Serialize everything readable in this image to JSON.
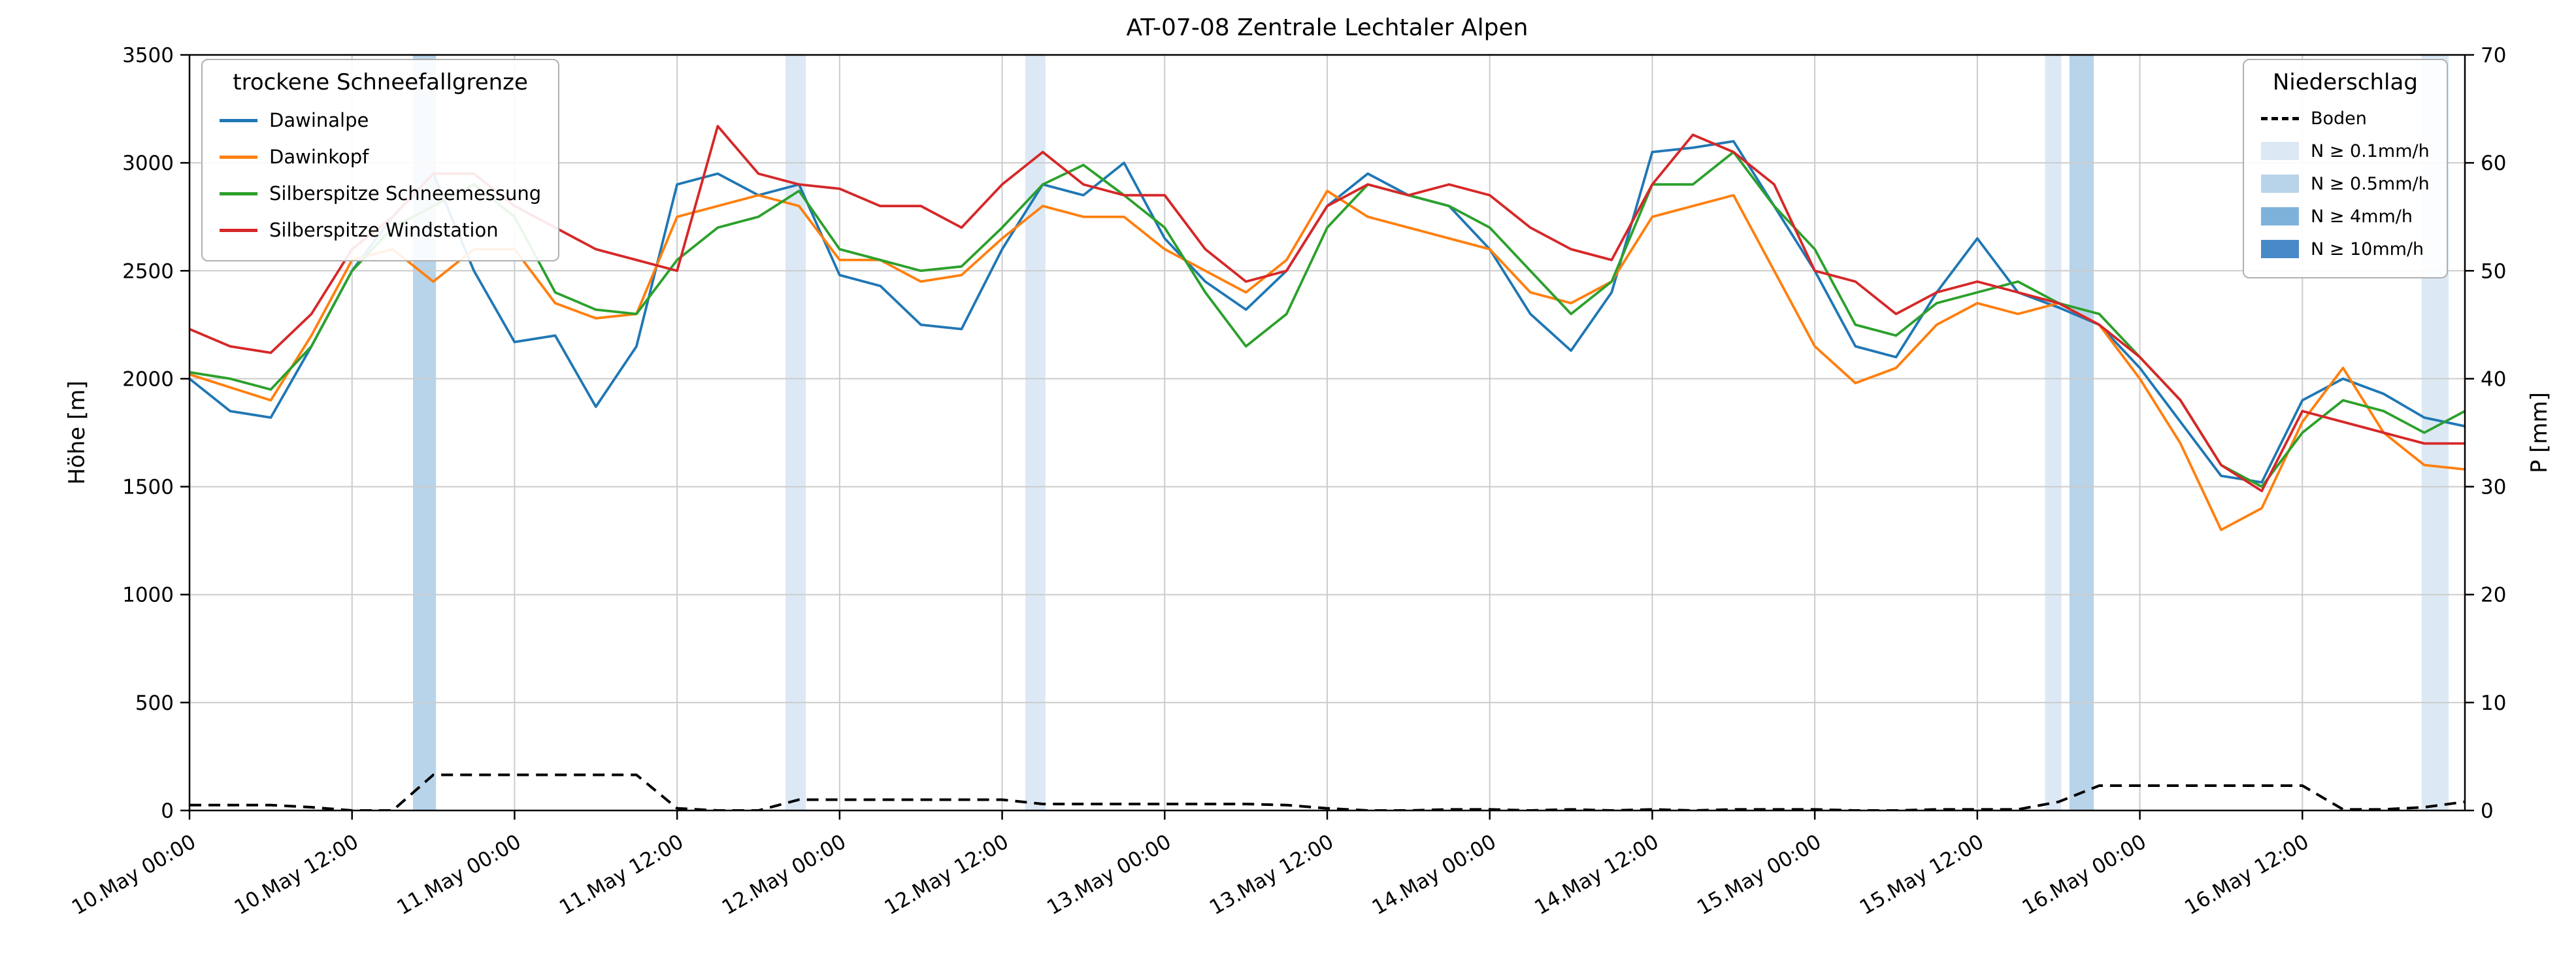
{
  "title": "AT-07-08 Zentrale Lechtaler Alpen",
  "axes": {
    "y_left_label": "Höhe [m]",
    "y_right_label": "P [mm]",
    "y_left_ticks": [
      0,
      500,
      1000,
      1500,
      2000,
      2500,
      3000,
      3500
    ],
    "y_right_ticks": [
      0,
      10,
      20,
      30,
      40,
      50,
      60,
      70
    ],
    "x_ticks": [
      {
        "h": 0,
        "label": "10.May 00:00"
      },
      {
        "h": 12,
        "label": "10.May 12:00"
      },
      {
        "h": 24,
        "label": "11.May 00:00"
      },
      {
        "h": 36,
        "label": "11.May 12:00"
      },
      {
        "h": 48,
        "label": "12.May 00:00"
      },
      {
        "h": 60,
        "label": "12.May 12:00"
      },
      {
        "h": 72,
        "label": "13.May 00:00"
      },
      {
        "h": 84,
        "label": "13.May 12:00"
      },
      {
        "h": 96,
        "label": "14.May 00:00"
      },
      {
        "h": 108,
        "label": "14.May 12:00"
      },
      {
        "h": 120,
        "label": "15.May 00:00"
      },
      {
        "h": 132,
        "label": "15.May 12:00"
      },
      {
        "h": 144,
        "label": "16.May 00:00"
      },
      {
        "h": 156,
        "label": "16.May 12:00"
      }
    ]
  },
  "legend_snowline": {
    "title": "trockene Schneefallgrenze",
    "entries": [
      {
        "label": "Dawinalpe",
        "color": "#1f77b4"
      },
      {
        "label": "Dawinkopf",
        "color": "#ff7f0e"
      },
      {
        "label": "Silberspitze Schneemessung",
        "color": "#2ca02c"
      },
      {
        "label": "Silberspitze Windstation",
        "color": "#d62728"
      }
    ]
  },
  "legend_precip": {
    "title": "Niederschlag",
    "entries": [
      {
        "label": "Boden",
        "color": "#000000",
        "style": "dashed-line"
      },
      {
        "label": "N ≥ 0.1mm/h",
        "color": "#dce9f5",
        "style": "patch"
      },
      {
        "label": "N ≥ 0.5mm/h",
        "color": "#b8d4ea",
        "style": "patch"
      },
      {
        "label": "N ≥ 4mm/h",
        "color": "#7fb2da",
        "style": "patch"
      },
      {
        "label": "N ≥ 10mm/h",
        "color": "#4889c8",
        "style": "patch"
      }
    ]
  },
  "chart_data": {
    "type": "line",
    "title": "AT-07-08 Zentrale Lechtaler Alpen",
    "ylabel": "Höhe [m]",
    "y2label": "P [mm]",
    "xlim_hours": [
      0,
      168
    ],
    "ylim_left": [
      0,
      3500
    ],
    "ylim_right": [
      0,
      70
    ],
    "x_unit": "hours since 10.May 00:00",
    "x_hours": [
      0,
      3,
      6,
      9,
      12,
      15,
      18,
      21,
      24,
      27,
      30,
      33,
      36,
      39,
      42,
      45,
      48,
      51,
      54,
      57,
      60,
      63,
      66,
      69,
      72,
      75,
      78,
      81,
      84,
      87,
      90,
      93,
      96,
      99,
      102,
      105,
      108,
      111,
      114,
      117,
      120,
      123,
      126,
      129,
      132,
      135,
      138,
      141,
      144,
      147,
      150,
      153,
      156,
      159,
      162,
      165,
      168
    ],
    "series": [
      {
        "name": "Dawinalpe",
        "color": "#1f77b4",
        "axis": "left",
        "unit": "m",
        "values": [
          2000,
          1850,
          1820,
          2150,
          2500,
          2750,
          2950,
          2500,
          2170,
          2200,
          1870,
          2150,
          2900,
          2950,
          2850,
          2900,
          2480,
          2430,
          2250,
          2230,
          2600,
          2900,
          2850,
          3000,
          2650,
          2450,
          2320,
          2500,
          2800,
          2950,
          2850,
          2800,
          2600,
          2300,
          2130,
          2400,
          3050,
          3070,
          3100,
          2800,
          2500,
          2150,
          2100,
          2400,
          2650,
          2400,
          2330,
          2250,
          2050,
          1800,
          1550,
          1520,
          1900,
          2000,
          1930,
          1820,
          1780
        ]
      },
      {
        "name": "Dawinkopf",
        "color": "#ff7f0e",
        "axis": "left",
        "unit": "m",
        "values": [
          2020,
          1960,
          1900,
          2200,
          2550,
          2600,
          2450,
          2600,
          2600,
          2350,
          2280,
          2300,
          2750,
          2800,
          2850,
          2800,
          2550,
          2550,
          2450,
          2480,
          2650,
          2800,
          2750,
          2750,
          2600,
          2500,
          2400,
          2550,
          2870,
          2750,
          2700,
          2650,
          2600,
          2400,
          2350,
          2450,
          2750,
          2800,
          2850,
          2500,
          2150,
          1980,
          2050,
          2250,
          2350,
          2300,
          2350,
          2250,
          2000,
          1700,
          1300,
          1400,
          1800,
          2050,
          1750,
          1600,
          1580
        ]
      },
      {
        "name": "Silberspitze Schneemessung",
        "color": "#2ca02c",
        "axis": "left",
        "unit": "m",
        "values": [
          2030,
          2000,
          1950,
          2150,
          2500,
          2700,
          2800,
          2900,
          2750,
          2400,
          2320,
          2300,
          2550,
          2700,
          2750,
          2870,
          2600,
          2550,
          2500,
          2520,
          2700,
          2900,
          2990,
          2850,
          2700,
          2400,
          2150,
          2300,
          2700,
          2900,
          2850,
          2800,
          2700,
          2500,
          2300,
          2450,
          2900,
          2900,
          3050,
          2800,
          2600,
          2250,
          2200,
          2350,
          2400,
          2450,
          2350,
          2300,
          2100,
          1900,
          1600,
          1500,
          1750,
          1900,
          1850,
          1750,
          1850
        ]
      },
      {
        "name": "Silberspitze Windstation",
        "color": "#d62728",
        "axis": "left",
        "unit": "m",
        "values": [
          2230,
          2150,
          2120,
          2300,
          2600,
          2750,
          2950,
          2950,
          2800,
          2700,
          2600,
          2550,
          2500,
          3170,
          2950,
          2900,
          2880,
          2800,
          2800,
          2700,
          2900,
          3050,
          2900,
          2850,
          2850,
          2600,
          2450,
          2500,
          2800,
          2900,
          2850,
          2900,
          2850,
          2700,
          2600,
          2550,
          2900,
          3130,
          3050,
          2900,
          2500,
          2450,
          2300,
          2400,
          2450,
          2400,
          2350,
          2250,
          2100,
          1900,
          1600,
          1480,
          1850,
          1800,
          1750,
          1700,
          1700
        ]
      },
      {
        "name": "Boden",
        "color": "#000000",
        "axis": "right",
        "unit": "mm",
        "dash": true,
        "values": [
          0.5,
          0.5,
          0.5,
          0.3,
          0,
          0,
          3.3,
          3.3,
          3.3,
          3.3,
          3.3,
          3.3,
          0.2,
          0,
          0,
          1.0,
          1.0,
          1.0,
          1.0,
          1.0,
          1.0,
          0.6,
          0.6,
          0.6,
          0.6,
          0.6,
          0.6,
          0.5,
          0.2,
          0,
          0,
          0.1,
          0.1,
          0,
          0.1,
          0,
          0.1,
          0,
          0.1,
          0.1,
          0.1,
          0,
          0,
          0.1,
          0.1,
          0.1,
          0.8,
          2.3,
          2.3,
          2.3,
          2.3,
          2.3,
          2.3,
          0.1,
          0.1,
          0.3,
          0.8
        ]
      }
    ],
    "band_colors": {
      "N ≥ 0.1mm/h": "#dce9f5",
      "N ≥ 0.5mm/h": "#b8d4ea",
      "N ≥ 4mm/h": "#7fb2da",
      "N ≥ 10mm/h": "#4889c8"
    },
    "bands": [
      {
        "start_h": 16.5,
        "end_h": 18.2,
        "level": "N ≥ 0.5mm/h"
      },
      {
        "start_h": 44.0,
        "end_h": 45.5,
        "level": "N ≥ 0.1mm/h"
      },
      {
        "start_h": 61.7,
        "end_h": 63.2,
        "level": "N ≥ 0.1mm/h"
      },
      {
        "start_h": 137.0,
        "end_h": 138.2,
        "level": "N ≥ 0.1mm/h"
      },
      {
        "start_h": 138.8,
        "end_h": 140.6,
        "level": "N ≥ 0.5mm/h"
      },
      {
        "start_h": 164.8,
        "end_h": 166.8,
        "level": "N ≥ 0.1mm/h"
      }
    ]
  }
}
